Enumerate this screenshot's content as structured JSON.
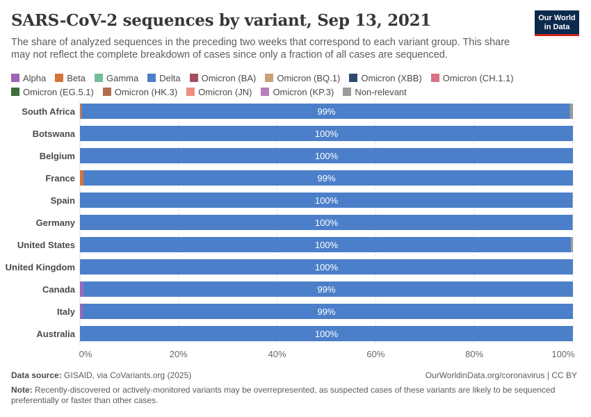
{
  "header": {
    "title": "SARS-CoV-2 sequences by variant, Sep 13, 2021",
    "subtitle": "The share of analyzed sequences in the preceding two weeks that correspond to each variant group. This share may not reflect the complete breakdown of cases since only a fraction of all cases are sequenced.",
    "logo_line1": "Our World",
    "logo_line2": "in Data"
  },
  "legend": [
    {
      "name": "Alpha",
      "color": "#a064b4"
    },
    {
      "name": "Beta",
      "color": "#d6743a"
    },
    {
      "name": "Gamma",
      "color": "#71bc9c"
    },
    {
      "name": "Delta",
      "color": "#4c7fc9"
    },
    {
      "name": "Omicron (BA)",
      "color": "#a2505d"
    },
    {
      "name": "Omicron (BQ.1)",
      "color": "#caa278"
    },
    {
      "name": "Omicron (XBB)",
      "color": "#2c4a72"
    },
    {
      "name": "Omicron (CH.1.1)",
      "color": "#d87384"
    },
    {
      "name": "Omicron (EG.5.1)",
      "color": "#3d6e39"
    },
    {
      "name": "Omicron (HK.3)",
      "color": "#b06c4c"
    },
    {
      "name": "Omicron (JN)",
      "color": "#ef8c7e"
    },
    {
      "name": "Omicron (KP.3)",
      "color": "#b77cbb"
    },
    {
      "name": "Non-relevant",
      "color": "#9a9a9a"
    }
  ],
  "chart_data": {
    "type": "bar",
    "orientation": "horizontal",
    "stacked": true,
    "title": "SARS-CoV-2 sequences by variant, Sep 13, 2021",
    "categories": [
      "South Africa",
      "Botswana",
      "Belgium",
      "France",
      "Spain",
      "Germany",
      "United States",
      "United Kingdom",
      "Canada",
      "Italy",
      "Australia"
    ],
    "series": [
      {
        "name": "Alpha",
        "color": "#a064b4",
        "values": [
          0,
          0,
          0,
          0,
          0,
          0,
          0,
          0,
          0.6,
          0.5,
          0
        ]
      },
      {
        "name": "Beta",
        "color": "#d6743a",
        "values": [
          0.3,
          0,
          0,
          0.7,
          0,
          0,
          0,
          0,
          0,
          0,
          0
        ]
      },
      {
        "name": "Delta",
        "color": "#4c7fc9",
        "values": [
          99.1,
          100,
          100,
          99.3,
          99.9,
          99.9,
          99.6,
          100,
          99.4,
          99.5,
          100
        ]
      },
      {
        "name": "Non-relevant",
        "color": "#9a9a9a",
        "values": [
          0.6,
          0,
          0,
          0,
          0.1,
          0.1,
          0.4,
          0,
          0,
          0,
          0
        ]
      }
    ],
    "data_labels": [
      "99%",
      "100%",
      "100%",
      "99%",
      "100%",
      "100%",
      "100%",
      "100%",
      "99%",
      "99%",
      "100%"
    ],
    "x_ticks": [
      "0%",
      "20%",
      "40%",
      "60%",
      "80%",
      "100%"
    ],
    "xlim": [
      0,
      100
    ],
    "grid": true,
    "legend_position": "top"
  },
  "footer": {
    "source_label": "Data source:",
    "source_text": "GISAID, via CoVariants.org (2025)",
    "url": "OurWorldinData.org/coronavirus | CC BY",
    "note_label": "Note:",
    "note_text": "Recently-discovered or actively-monitored variants may be overrepresented, as suspected cases of these variants are likely to be sequenced preferentially or faster than other cases."
  }
}
